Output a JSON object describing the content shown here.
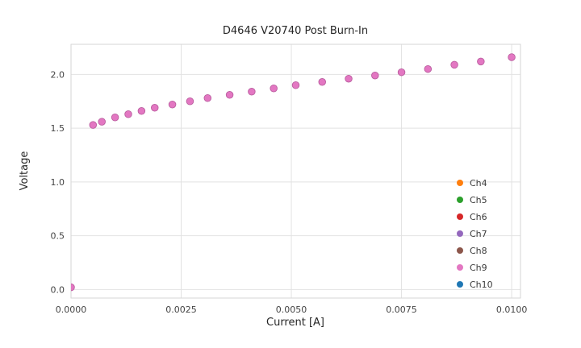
{
  "title": "D4646 V20740 Post Burn-In",
  "chart_data": {
    "type": "scatter",
    "title": "D4646 V20740 Post Burn-In",
    "xlabel": "Current [A]",
    "ylabel": "Voltage",
    "xlim": [
      0.0,
      0.0102
    ],
    "ylim": [
      -0.08,
      2.28
    ],
    "xticks": [
      0.0,
      0.0025,
      0.005,
      0.0075,
      0.01
    ],
    "xtick_labels": [
      "0.0000",
      "0.0025",
      "0.0050",
      "0.0075",
      "0.0100"
    ],
    "yticks": [
      0.0,
      0.5,
      1.0,
      1.5,
      2.0
    ],
    "ytick_labels": [
      "0.0",
      "0.5",
      "1.0",
      "1.5",
      "2.0"
    ],
    "grid": true,
    "legend_position": "lower right",
    "x": [
      0.0,
      0.0005,
      0.0007,
      0.001,
      0.0013,
      0.0016,
      0.0019,
      0.0023,
      0.0027,
      0.0031,
      0.0036,
      0.0041,
      0.0046,
      0.0051,
      0.0057,
      0.0063,
      0.0069,
      0.0075,
      0.0081,
      0.0087,
      0.0093,
      0.01
    ],
    "y_shared": [
      0.02,
      1.53,
      1.56,
      1.6,
      1.63,
      1.66,
      1.69,
      1.72,
      1.75,
      1.78,
      1.81,
      1.84,
      1.87,
      1.9,
      1.93,
      1.96,
      1.99,
      2.02,
      2.05,
      2.09,
      2.12,
      2.16
    ],
    "series_note": "All channels overlap; each channel shares the same x/y values, Ch9 (pink) plotted on top.",
    "series": [
      {
        "name": "Ch4",
        "color": "#ff7f0e"
      },
      {
        "name": "Ch5",
        "color": "#2ca02c"
      },
      {
        "name": "Ch6",
        "color": "#d62728"
      },
      {
        "name": "Ch7",
        "color": "#9467bd"
      },
      {
        "name": "Ch8",
        "color": "#8c564b"
      },
      {
        "name": "Ch9",
        "color": "#e377c2"
      },
      {
        "name": "Ch10",
        "color": "#1f77b4"
      }
    ],
    "draw_order": [
      "Ch4",
      "Ch5",
      "Ch6",
      "Ch7",
      "Ch8",
      "Ch10",
      "Ch9"
    ],
    "marker": {
      "radius": 4.3,
      "top_edge_color": "#bb5fa0"
    },
    "colors": {
      "grid": "#e2e2e2",
      "plot_border": "#d6d6d6",
      "background": "#ffffff"
    }
  }
}
